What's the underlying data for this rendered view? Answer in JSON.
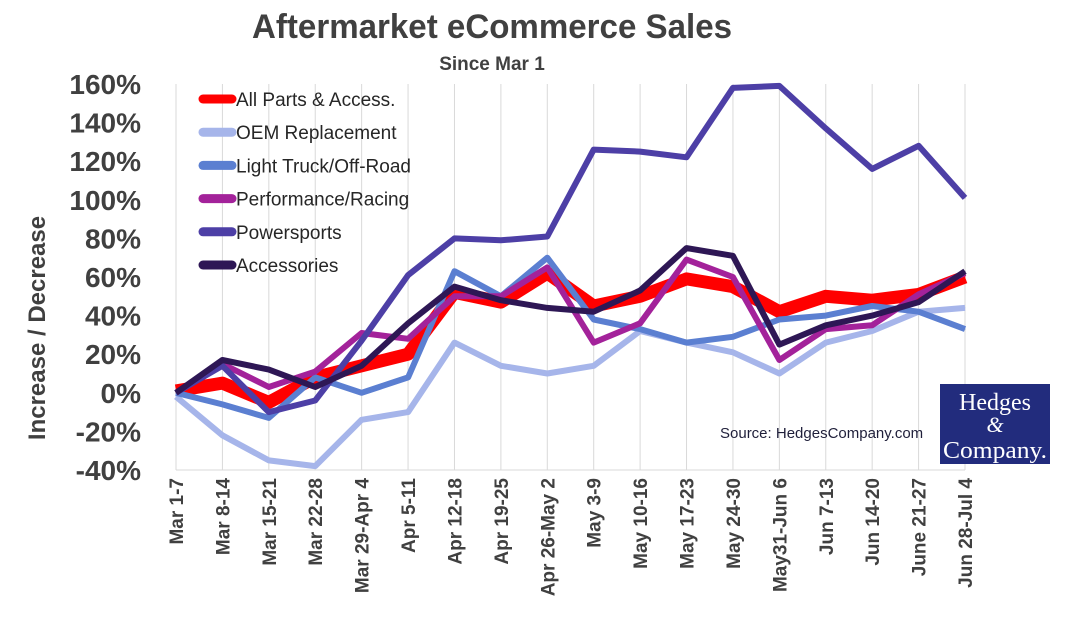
{
  "chart_data": {
    "type": "line",
    "title": "Aftermarket eCommerce Sales",
    "subtitle": "Since Mar 1",
    "xlabel": "",
    "ylabel": "Increase / Decrease",
    "ylim": [
      -40,
      160
    ],
    "yticks": [
      -40,
      -20,
      0,
      20,
      40,
      60,
      80,
      100,
      120,
      140,
      160
    ],
    "ytick_labels": [
      "-40%",
      "-20%",
      "0%",
      "20%",
      "40%",
      "60%",
      "80%",
      "100%",
      "120%",
      "140%",
      "160%"
    ],
    "grid": "vertical",
    "legend_position": "top-left",
    "categories": [
      "Mar 1-7",
      "Mar 8-14",
      "Mar 15-21",
      "Mar 22-28",
      "Mar 29-Apr 4",
      "Apr 5-11",
      "Apr 12-18",
      "Apr 19-25",
      "Apr 26-May 2",
      "May 3-9",
      "May 10-16",
      "May 17-23",
      "May 24-30",
      "May31-Jun 6",
      "Jun 7-13",
      "Jun 14-20",
      "June 21-27",
      "Jun 28-Jul 4"
    ],
    "series": [
      {
        "name": "All Parts & Access.",
        "color": "#ff0000",
        "width": 13,
        "values": [
          1,
          5,
          -5,
          8,
          14,
          20,
          52,
          47,
          62,
          45,
          50,
          59,
          55,
          42,
          50,
          48,
          51,
          60
        ]
      },
      {
        "name": "OEM Replacement",
        "color": "#a6b5ea",
        "width": 6,
        "values": [
          -2,
          -22,
          -35,
          -38,
          -14,
          -10,
          26,
          14,
          10,
          14,
          32,
          26,
          21,
          10,
          26,
          32,
          42,
          44
        ]
      },
      {
        "name": "Light Truck/Off-Road",
        "color": "#5b7fd1",
        "width": 6,
        "values": [
          0,
          -6,
          -13,
          8,
          0,
          8,
          63,
          50,
          70,
          38,
          33,
          26,
          29,
          38,
          40,
          45,
          42,
          33
        ]
      },
      {
        "name": "Performance/Racing",
        "color": "#a3229a",
        "width": 6,
        "values": [
          0,
          15,
          3,
          11,
          31,
          28,
          50,
          50,
          65,
          26,
          36,
          69,
          60,
          17,
          33,
          35,
          51,
          62
        ]
      },
      {
        "name": "Powersports",
        "color": "#4d3fa6",
        "width": 6,
        "values": [
          0,
          14,
          -10,
          -4,
          27,
          61,
          80,
          79,
          81,
          126,
          125,
          122,
          158,
          159,
          137,
          116,
          128,
          101
        ]
      },
      {
        "name": "Accessories",
        "color": "#2e1755",
        "width": 6,
        "values": [
          0,
          17,
          12,
          3,
          14,
          36,
          55,
          48,
          44,
          42,
          53,
          75,
          71,
          25,
          35,
          40,
          47,
          63
        ]
      }
    ],
    "annotations": [
      {
        "text": "Source: HedgesCompany.com"
      }
    ]
  },
  "logo": {
    "line1": "Hedges",
    "line2": "&",
    "line3": "Company.",
    "bg_color": "#222c7d"
  }
}
